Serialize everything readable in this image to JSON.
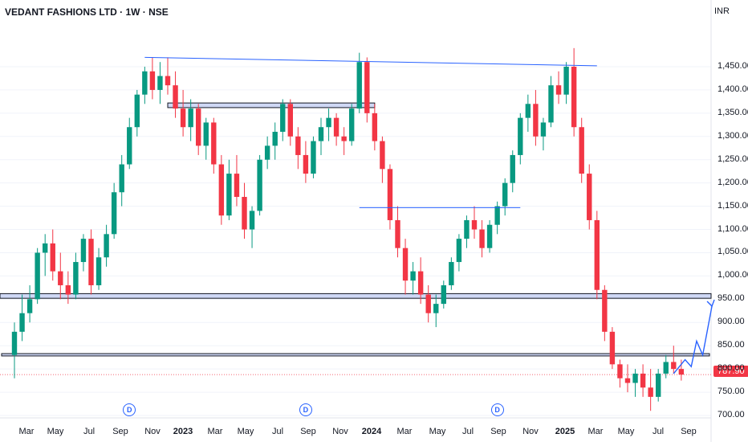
{
  "title": "VEDANT FASHIONS LTD · 1W · NSE",
  "currency": "INR",
  "last_price_label": "787.90",
  "y_ticks": [
    "1,450.00",
    "1,400.00",
    "1,350.00",
    "1,300.00",
    "1,250.00",
    "1,200.00",
    "1,150.00",
    "1,100.00",
    "1,050.00",
    "1,000.00",
    "950.00",
    "900.00",
    "850.00",
    "800.00",
    "750.00",
    "700.00"
  ],
  "x_ticks": [
    {
      "label": "Mar",
      "year": false
    },
    {
      "label": "May",
      "year": false
    },
    {
      "label": "Jul",
      "year": false
    },
    {
      "label": "Sep",
      "year": false
    },
    {
      "label": "Nov",
      "year": false
    },
    {
      "label": "2023",
      "year": true
    },
    {
      "label": "Mar",
      "year": false
    },
    {
      "label": "May",
      "year": false
    },
    {
      "label": "Jul",
      "year": false
    },
    {
      "label": "Sep",
      "year": false
    },
    {
      "label": "Nov",
      "year": false
    },
    {
      "label": "2024",
      "year": true
    },
    {
      "label": "Mar",
      "year": false
    },
    {
      "label": "May",
      "year": false
    },
    {
      "label": "Jul",
      "year": false
    },
    {
      "label": "Sep",
      "year": false
    },
    {
      "label": "Nov",
      "year": false
    },
    {
      "label": "2025",
      "year": true
    },
    {
      "label": "Mar",
      "year": false
    },
    {
      "label": "May",
      "year": false
    },
    {
      "label": "Jul",
      "year": false
    },
    {
      "label": "Sep",
      "year": false
    }
  ],
  "dividend_marker_label": "D",
  "colors": {
    "up": "#089981",
    "down": "#f23645",
    "drawing": "#2962ff",
    "zone_fill": "#cfd8f5",
    "grid": "#f0f3fa",
    "box_stroke": "#131722"
  },
  "chart_data": {
    "type": "candlestick",
    "title": "VEDANT FASHIONS LTD · 1W · NSE",
    "y_axis": {
      "range": [
        690,
        1500
      ],
      "unit": "INR"
    },
    "last_price": 787.9,
    "candles": [
      [
        830,
        900,
        780,
        880
      ],
      [
        880,
        960,
        860,
        920
      ],
      [
        920,
        980,
        900,
        950
      ],
      [
        950,
        1060,
        940,
        1050
      ],
      [
        1050,
        1090,
        1000,
        1070
      ],
      [
        1070,
        1100,
        990,
        1010
      ],
      [
        1010,
        1050,
        950,
        980
      ],
      [
        980,
        1010,
        940,
        960
      ],
      [
        960,
        1050,
        950,
        1030
      ],
      [
        1030,
        1090,
        1010,
        1080
      ],
      [
        1080,
        1100,
        960,
        980
      ],
      [
        980,
        1060,
        970,
        1040
      ],
      [
        1040,
        1110,
        1020,
        1090
      ],
      [
        1090,
        1200,
        1080,
        1180
      ],
      [
        1180,
        1260,
        1150,
        1240
      ],
      [
        1240,
        1340,
        1230,
        1320
      ],
      [
        1320,
        1400,
        1300,
        1390
      ],
      [
        1390,
        1450,
        1370,
        1440
      ],
      [
        1440,
        1470,
        1380,
        1400
      ],
      [
        1400,
        1460,
        1370,
        1430
      ],
      [
        1430,
        1470,
        1390,
        1410
      ],
      [
        1410,
        1440,
        1340,
        1360
      ],
      [
        1360,
        1400,
        1300,
        1320
      ],
      [
        1320,
        1380,
        1290,
        1360
      ],
      [
        1360,
        1370,
        1260,
        1280
      ],
      [
        1280,
        1340,
        1250,
        1330
      ],
      [
        1330,
        1340,
        1220,
        1240
      ],
      [
        1240,
        1260,
        1110,
        1130
      ],
      [
        1130,
        1250,
        1120,
        1220
      ],
      [
        1220,
        1260,
        1150,
        1170
      ],
      [
        1170,
        1200,
        1080,
        1100
      ],
      [
        1100,
        1150,
        1060,
        1140
      ],
      [
        1140,
        1260,
        1130,
        1250
      ],
      [
        1250,
        1300,
        1230,
        1280
      ],
      [
        1280,
        1330,
        1250,
        1310
      ],
      [
        1310,
        1380,
        1290,
        1370
      ],
      [
        1370,
        1380,
        1280,
        1300
      ],
      [
        1300,
        1320,
        1230,
        1260
      ],
      [
        1260,
        1290,
        1200,
        1220
      ],
      [
        1220,
        1300,
        1210,
        1290
      ],
      [
        1290,
        1340,
        1260,
        1320
      ],
      [
        1320,
        1360,
        1290,
        1340
      ],
      [
        1340,
        1350,
        1280,
        1300
      ],
      [
        1300,
        1320,
        1260,
        1290
      ],
      [
        1290,
        1370,
        1280,
        1360
      ],
      [
        1360,
        1480,
        1350,
        1460
      ],
      [
        1460,
        1470,
        1330,
        1350
      ],
      [
        1350,
        1370,
        1270,
        1290
      ],
      [
        1290,
        1300,
        1200,
        1230
      ],
      [
        1230,
        1240,
        1100,
        1120
      ],
      [
        1120,
        1150,
        1040,
        1060
      ],
      [
        1060,
        1080,
        960,
        990
      ],
      [
        990,
        1030,
        960,
        1010
      ],
      [
        1010,
        1040,
        940,
        960
      ],
      [
        960,
        980,
        900,
        920
      ],
      [
        920,
        960,
        890,
        940
      ],
      [
        940,
        990,
        930,
        980
      ],
      [
        980,
        1040,
        970,
        1030
      ],
      [
        1030,
        1090,
        1010,
        1080
      ],
      [
        1080,
        1130,
        1060,
        1120
      ],
      [
        1120,
        1150,
        1080,
        1100
      ],
      [
        1100,
        1120,
        1040,
        1060
      ],
      [
        1060,
        1120,
        1050,
        1110
      ],
      [
        1110,
        1160,
        1090,
        1150
      ],
      [
        1150,
        1210,
        1130,
        1200
      ],
      [
        1200,
        1270,
        1180,
        1260
      ],
      [
        1260,
        1350,
        1240,
        1340
      ],
      [
        1340,
        1390,
        1310,
        1370
      ],
      [
        1370,
        1400,
        1280,
        1300
      ],
      [
        1300,
        1340,
        1270,
        1330
      ],
      [
        1330,
        1430,
        1320,
        1410
      ],
      [
        1410,
        1440,
        1370,
        1390
      ],
      [
        1390,
        1460,
        1370,
        1450
      ],
      [
        1450,
        1490,
        1300,
        1320
      ],
      [
        1320,
        1340,
        1200,
        1220
      ],
      [
        1220,
        1240,
        1100,
        1120
      ],
      [
        1120,
        1140,
        950,
        970
      ],
      [
        970,
        980,
        860,
        880
      ],
      [
        880,
        890,
        800,
        810
      ],
      [
        810,
        820,
        760,
        780
      ],
      [
        780,
        810,
        750,
        770
      ],
      [
        770,
        800,
        740,
        790
      ],
      [
        790,
        810,
        740,
        760
      ],
      [
        760,
        800,
        710,
        740
      ],
      [
        740,
        800,
        730,
        790
      ],
      [
        790,
        830,
        780,
        815
      ],
      [
        815,
        850,
        790,
        800
      ],
      [
        800,
        820,
        775,
        787.9
      ]
    ],
    "annotations": {
      "resistance_trendline": [
        [
          17,
          1470
        ],
        [
          76,
          1452
        ]
      ],
      "box_upper": {
        "from": 20,
        "to": 47,
        "high": 1372,
        "low": 1362
      },
      "line_1150": {
        "from": 45,
        "to": 66,
        "value": 1147
      },
      "zone_950": {
        "high": 962,
        "low": 952
      },
      "zone_830": {
        "high": 833,
        "low": 828
      },
      "projection_path": [
        [
          86,
          790
        ],
        [
          87.5,
          820
        ],
        [
          88.3,
          805
        ],
        [
          89,
          860
        ],
        [
          89.8,
          830
        ],
        [
          91,
          935
        ]
      ]
    },
    "dividend_markers_at_candles": [
      15,
      38,
      63
    ]
  }
}
